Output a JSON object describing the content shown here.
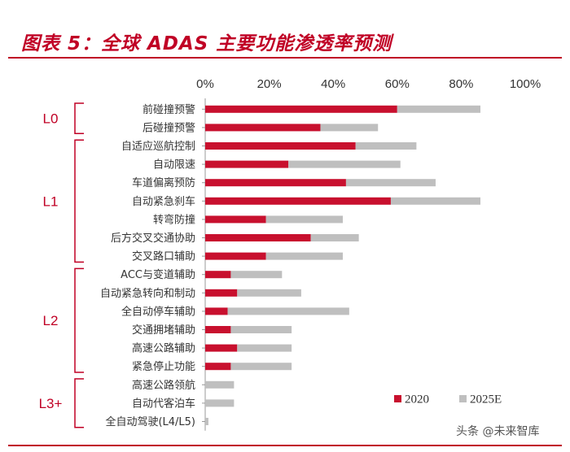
{
  "title": "图表 5：全球 ADAS 主要功能渗透率预测",
  "watermark": "头条 @未来智库",
  "colors": {
    "accent": "#c00025",
    "series_2020": "#c8102e",
    "series_2025": "#bfbfbf"
  },
  "chart_data": {
    "type": "bar",
    "orientation": "horizontal",
    "stacked": true,
    "title": "图表 5：全球 ADAS 主要功能渗透率预测",
    "xlim": [
      0,
      100
    ],
    "x_ticks": [
      "0%",
      "20%",
      "40%",
      "60%",
      "80%",
      "100%"
    ],
    "x_axis_position": "top",
    "grid": false,
    "legend_position": "bottom-right",
    "categories": [
      "前碰撞预警",
      "后碰撞预警",
      "自适应巡航控制",
      "自动限速",
      "车道偏离预防",
      "自动紧急刹车",
      "转弯防撞",
      "后方交叉交通协助",
      "交叉路口辅助",
      "ACC与变道辅助",
      "自动紧急转向和制动",
      "全自动停车辅助",
      "交通拥堵辅助",
      "高速公路辅助",
      "紧急停止功能",
      "高速公路领航",
      "自动代客泊车",
      "全自动驾驶(L4/L5)"
    ],
    "groups": [
      {
        "label": "L0",
        "start": 0,
        "end": 1
      },
      {
        "label": "L1",
        "start": 2,
        "end": 8
      },
      {
        "label": "L2",
        "start": 9,
        "end": 14
      },
      {
        "label": "L3+",
        "start": 15,
        "end": 17
      }
    ],
    "series": [
      {
        "name": "2020",
        "values": [
          60,
          36,
          47,
          26,
          44,
          58,
          19,
          33,
          19,
          8,
          10,
          7,
          8,
          10,
          8,
          0,
          0,
          0
        ]
      },
      {
        "name": "2025E",
        "values": [
          26,
          18,
          19,
          35,
          28,
          28,
          24,
          15,
          24,
          16,
          20,
          38,
          19,
          17,
          19,
          9,
          9,
          1
        ]
      }
    ]
  }
}
